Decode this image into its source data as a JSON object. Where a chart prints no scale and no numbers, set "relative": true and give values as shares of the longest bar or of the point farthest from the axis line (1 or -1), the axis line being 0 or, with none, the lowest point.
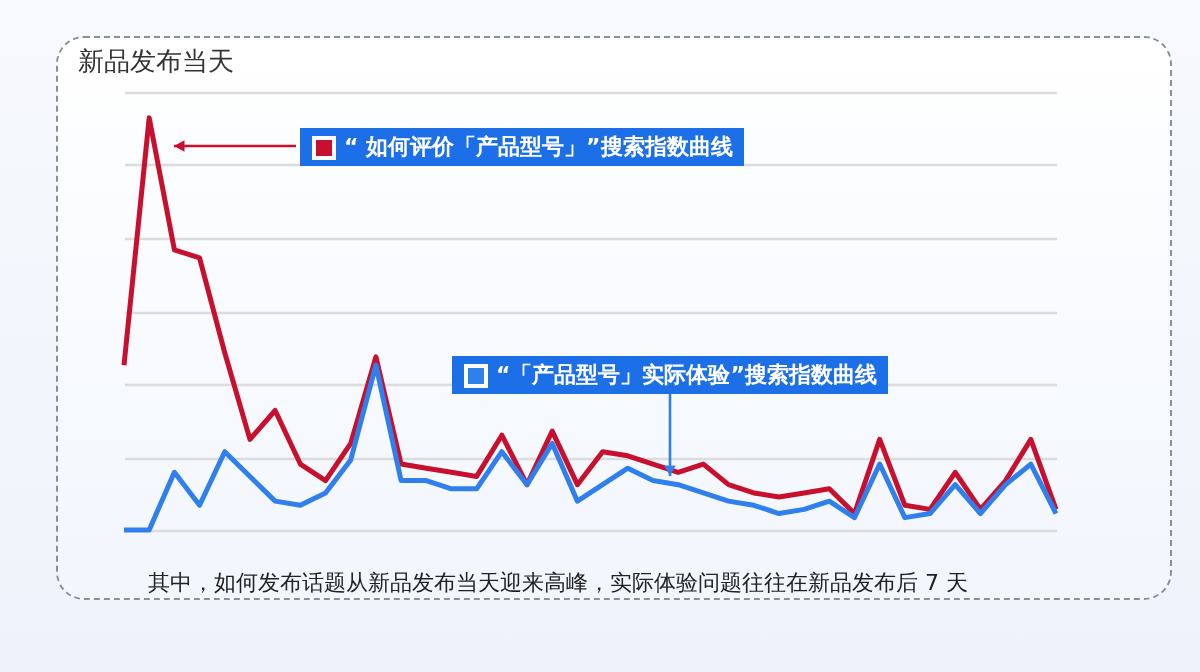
{
  "chart_data": {
    "type": "line",
    "title": "新品发布当天",
    "relative": true,
    "grid": "y",
    "legend": "top",
    "marker": "none",
    "line_style": "solid",
    "categories": [
      null,
      null,
      null,
      null,
      null,
      null,
      null,
      null,
      null,
      null,
      null,
      null,
      null,
      null,
      null,
      null,
      null,
      null,
      null,
      null,
      null,
      null,
      null,
      null,
      null,
      null,
      null,
      null,
      null,
      null,
      null,
      null,
      null,
      null,
      null,
      null,
      null,
      null
    ],
    "series": [
      {
        "name": "“ 如何评价「产品型号」”搜索指数曲线",
        "color": "#c8102e",
        "values": [
          0.4,
          1.0,
          0.68,
          0.66,
          0.43,
          0.22,
          0.29,
          0.16,
          0.12,
          0.21,
          0.42,
          0.16,
          0.15,
          0.14,
          0.13,
          0.23,
          0.11,
          0.24,
          0.11,
          0.19,
          0.18,
          0.16,
          0.14,
          0.16,
          0.11,
          0.09,
          0.08,
          0.09,
          0.1,
          0.04,
          0.22,
          0.06,
          0.05,
          0.14,
          0.05,
          0.12,
          0.22,
          0.05
        ]
      },
      {
        "name": "“「产品型号」实际体验”搜索指数曲线",
        "color": "#2f80ed",
        "values": [
          0,
          0,
          0.14,
          0.06,
          0.19,
          0.13,
          0.07,
          0.06,
          0.09,
          0.17,
          0.4,
          0.12,
          0.12,
          0.1,
          0.1,
          0.19,
          0.11,
          0.21,
          0.07,
          0.11,
          0.15,
          0.12,
          0.11,
          0.09,
          0.07,
          0.06,
          0.04,
          0.05,
          0.07,
          0.03,
          0.16,
          0.03,
          0.04,
          0.11,
          0.04,
          0.11,
          0.16,
          0.04
        ]
      }
    ],
    "annotations": [
      "其中，如何发布话题从新品发布当天迎来高峰，实际体验问题往往在新品发布后 7 天"
    ]
  }
}
